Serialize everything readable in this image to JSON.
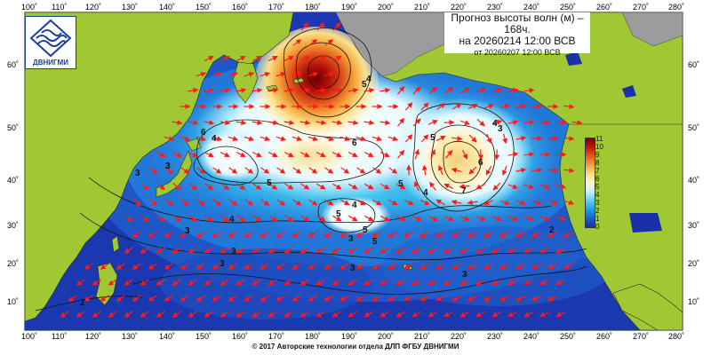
{
  "title": {
    "line1": "Прогноз высоты волн (м) –",
    "line2": "168ч.",
    "line3": "на 20260214 12:00 ВСВ",
    "line4": "от 20260207 12:00 ВСВ"
  },
  "logo": {
    "text": "ДВНИГМИ",
    "icon": "wave-emblem-icon"
  },
  "footer": "© 2017 Авторские технологии отдела ДЛП ФГБУ ДВНИГМИ",
  "axes": {
    "lon_labels": [
      "100˚",
      "110˚",
      "120˚",
      "130˚",
      "140˚",
      "150˚",
      "160˚",
      "170˚",
      "180˚",
      "190˚",
      "200˚",
      "210˚",
      "220˚",
      "230˚",
      "240˚",
      "250˚",
      "260˚",
      "270˚",
      "280˚"
    ],
    "lat_labels": [
      "60˚",
      "50˚",
      "40˚",
      "30˚",
      "20˚",
      "10˚"
    ]
  },
  "colorbar": {
    "labels": [
      "11",
      "10",
      "9",
      "8",
      "7",
      "6",
      "5",
      "4",
      "3",
      "2",
      "1",
      "0"
    ],
    "colors": [
      "#7a0000",
      "#c0180c",
      "#e85a1c",
      "#f4a23a",
      "#fbe08a",
      "#fff6c8",
      "#c8f0f8",
      "#5fd0f0",
      "#1aa0e8",
      "#1460d0",
      "#1a30a8"
    ]
  },
  "contour_labels": [
    "5",
    "4",
    "6",
    "5",
    "5",
    "6",
    "7",
    "4",
    "6",
    "4",
    "5",
    "5",
    "4",
    "4",
    "4",
    "5",
    "5",
    "3",
    "3",
    "3",
    "3",
    "3",
    "3",
    "3",
    "2",
    "2",
    "3",
    "3"
  ],
  "colors": {
    "land": "#a0c832",
    "no_data": "#9c9c9c",
    "ocean_deep": "#1a30a8",
    "arrow": "#ff1a1a"
  }
}
